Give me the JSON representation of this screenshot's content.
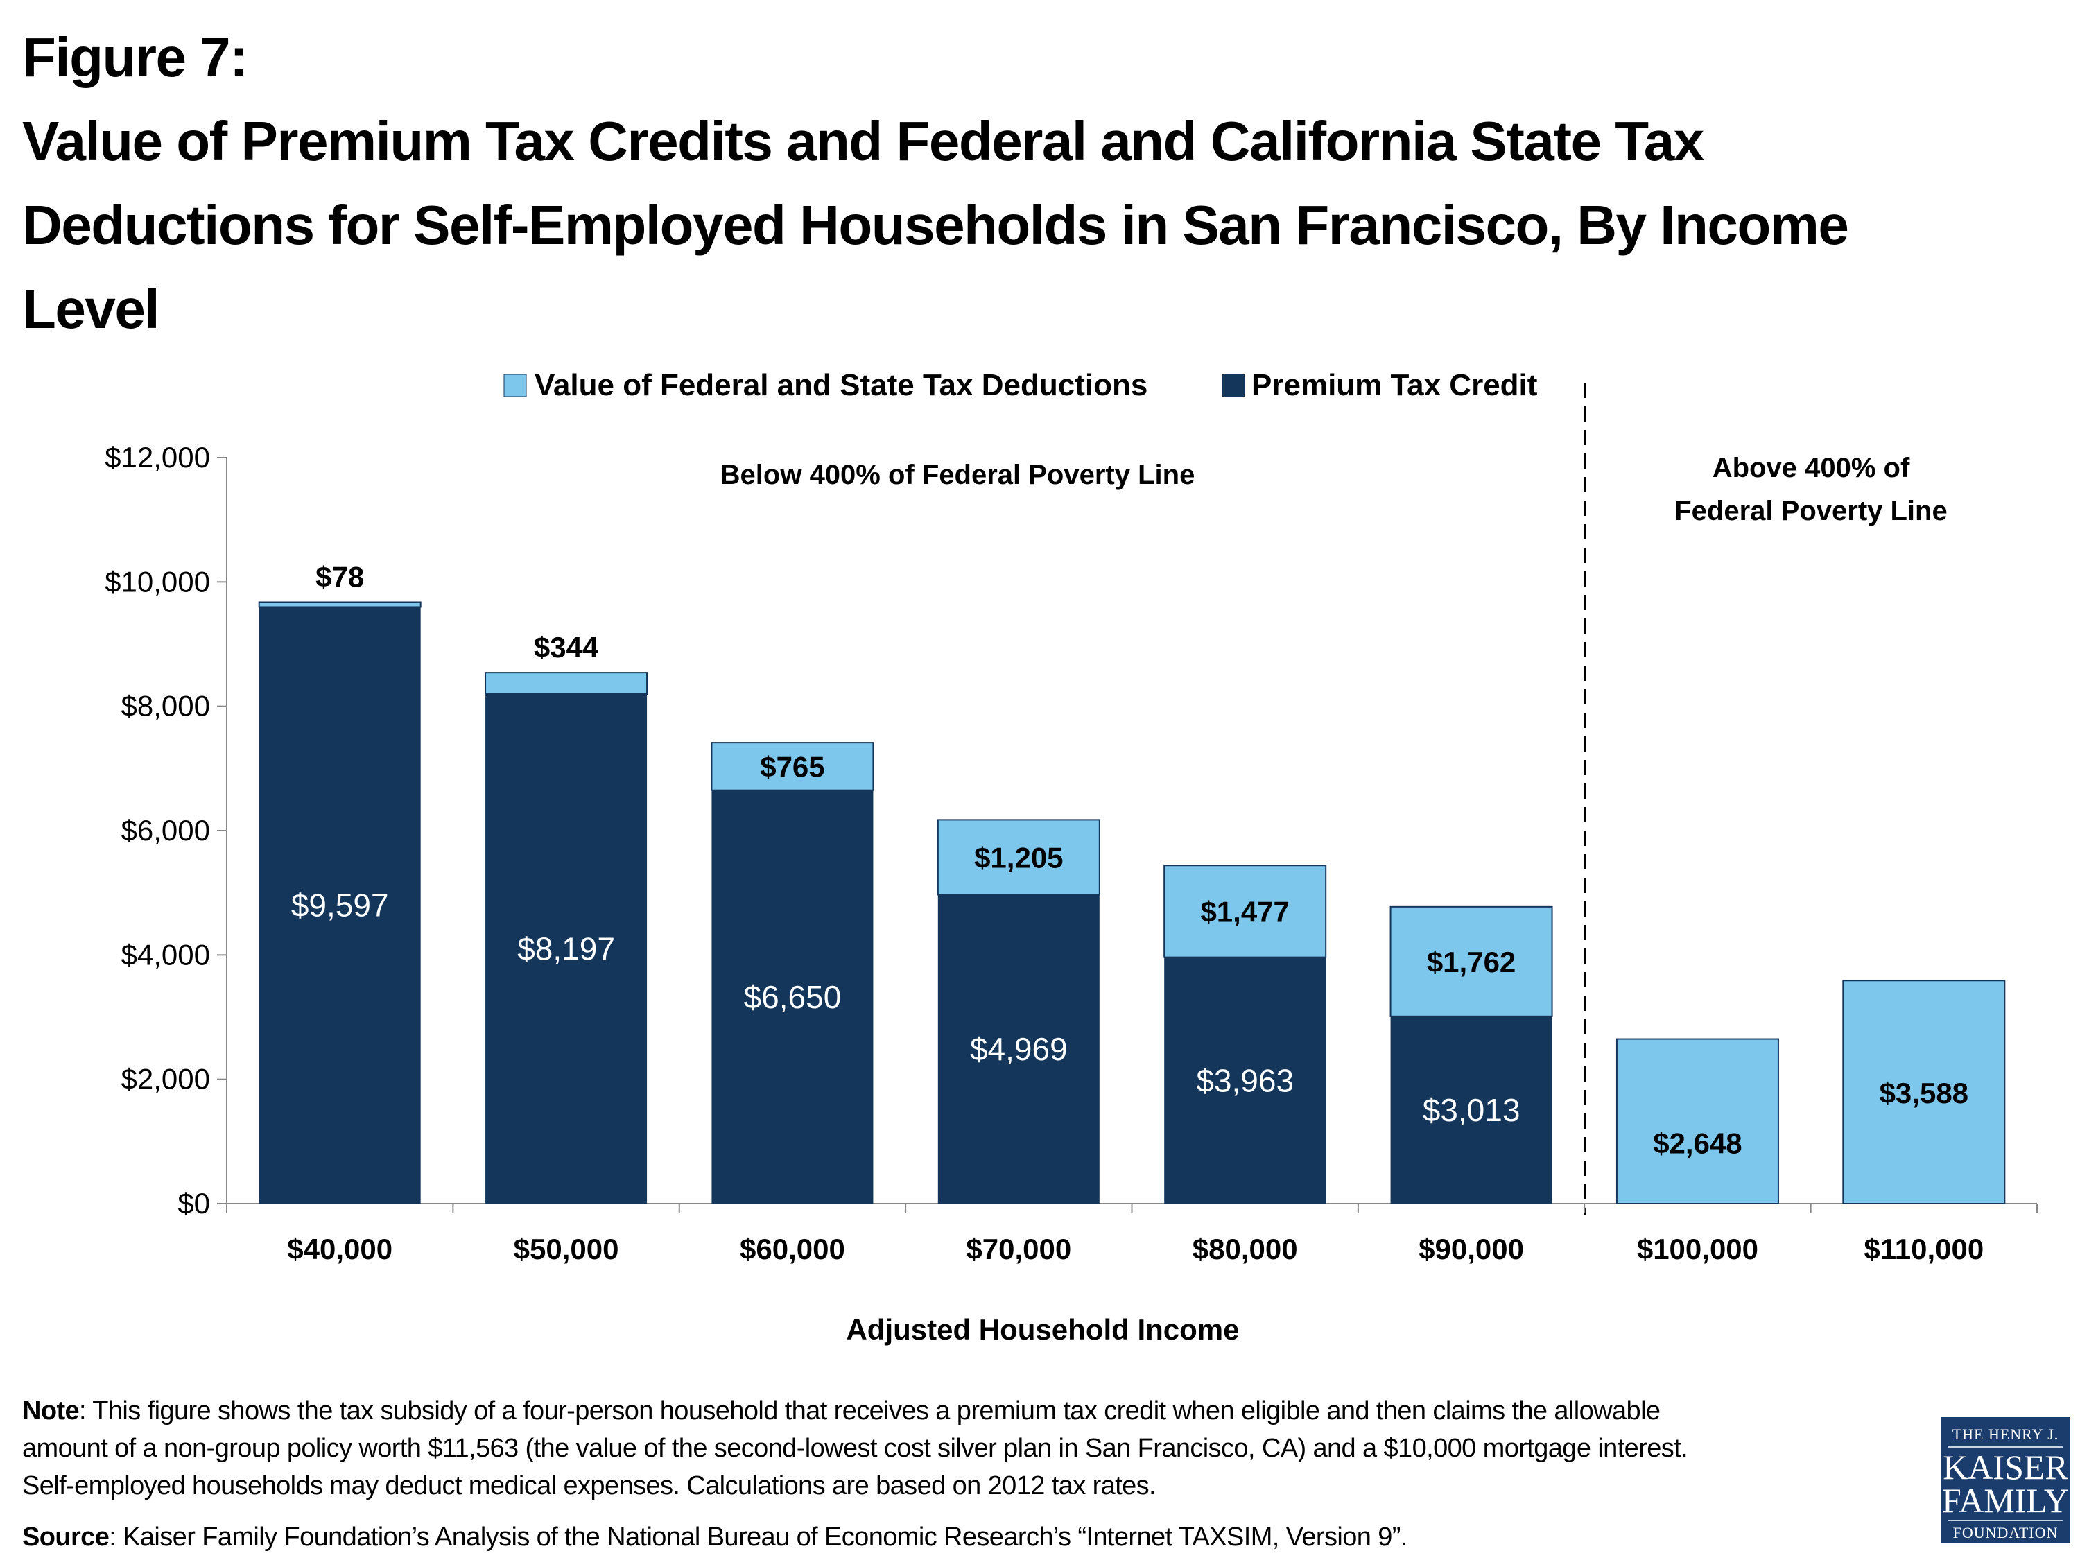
{
  "title": {
    "line1": "Figure 7:",
    "line2": "Value of Premium Tax Credits and Federal and California State Tax",
    "line3": "Deductions for Self-Employed Households in San Francisco, By Income",
    "line4": "Level"
  },
  "chart_data": {
    "type": "bar",
    "stacked": true,
    "categories": [
      "$40,000",
      "$50,000",
      "$60,000",
      "$70,000",
      "$80,000",
      "$90,000",
      "$100,000",
      "$110,000"
    ],
    "series": [
      {
        "name": "Premium Tax Credit",
        "color": "#14365b",
        "values": [
          9597,
          8197,
          6650,
          4969,
          3963,
          3013,
          0,
          0
        ],
        "labels": [
          "$9,597",
          "$8,197",
          "$6,650",
          "$4,969",
          "$3,963",
          "$3,013",
          "",
          ""
        ]
      },
      {
        "name": "Value of Federal and State Tax Deductions",
        "color": "#7dc6ec",
        "values": [
          78,
          344,
          765,
          1205,
          1477,
          1762,
          2648,
          3588
        ],
        "labels": [
          "$78",
          "$344",
          "$765",
          "$1,205",
          "$1,477",
          "$1,762",
          "$2,648",
          "$3,588"
        ]
      }
    ],
    "xlabel": "Adjusted Household Income",
    "ylabel": "",
    "ylim": [
      0,
      12000
    ],
    "yticks": [
      "$0",
      "$2,000",
      "$4,000",
      "$6,000",
      "$8,000",
      "$10,000",
      "$12,000"
    ],
    "legend_placement": "top-center",
    "grid": false,
    "annotations": {
      "below": "Below 400% of Federal Poverty Line",
      "above_line1": "Above 400% of",
      "above_line2": "Federal Poverty Line"
    }
  },
  "notes": {
    "note_label": "Note",
    "note_line1": ": This figure shows the tax subsidy of a four-person household that receives a premium tax credit when eligible and then claims the allowable",
    "note_line2": "amount of a non-group policy worth $11,563 (the value of the second-lowest cost silver plan in San Francisco, CA) and a $10,000 mortgage interest.",
    "note_line3": "Self-employed households may deduct medical expenses. Calculations are based on 2012 tax rates.",
    "source_label": "Source",
    "source_text": ":  Kaiser Family Foundation’s Analysis of the National Bureau of Economic Research’s “Internet TAXSIM, Version 9”."
  },
  "logo": {
    "line1": "THE HENRY J.",
    "line2": "KAISER",
    "line3": "FAMILY",
    "line4": "FOUNDATION"
  }
}
